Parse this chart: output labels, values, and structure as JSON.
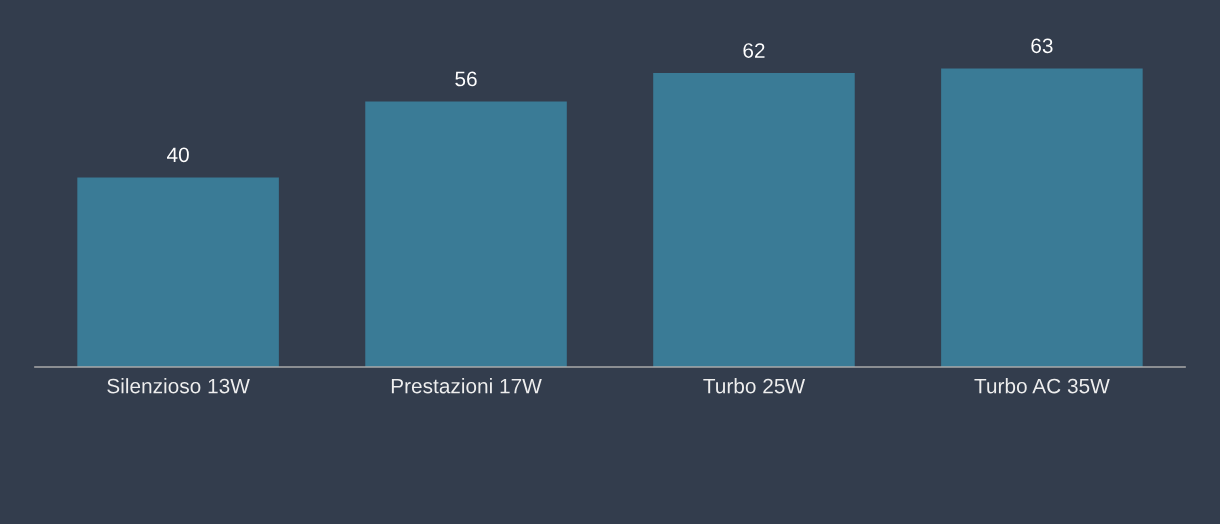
{
  "chart_data": {
    "type": "bar",
    "categories": [
      "Silenzioso 13W",
      "Prestazioni 17W",
      "Turbo 25W",
      "Turbo AC 35W"
    ],
    "values": [
      40,
      56,
      62,
      63
    ],
    "color": "#3a7b96",
    "data_labels": true,
    "tick_labels": "x",
    "grid": false,
    "legend": false
  }
}
